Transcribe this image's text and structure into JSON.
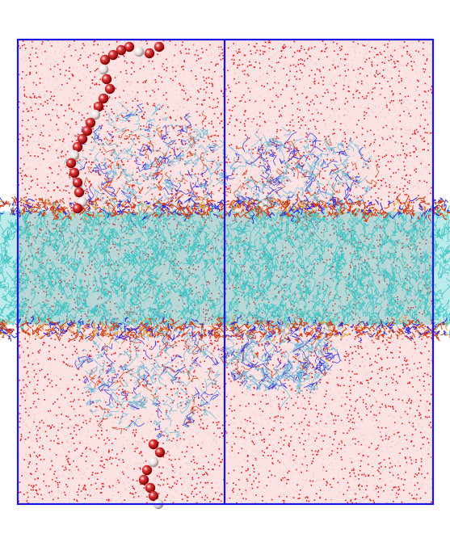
{
  "scene": {
    "subject": "molecular-dynamics-simulation-box",
    "colors": {
      "background": "#ffffff",
      "box_border": "#1a14e6",
      "water": "#e8191c",
      "water_light": "#f6c9c9",
      "lipid_tail": "#3cc4c4",
      "lipid_head": "#d4380e",
      "nitrogen": "#2a2ae0",
      "bead": "#c81010",
      "bead_highlight": "#f2e6e6"
    }
  }
}
